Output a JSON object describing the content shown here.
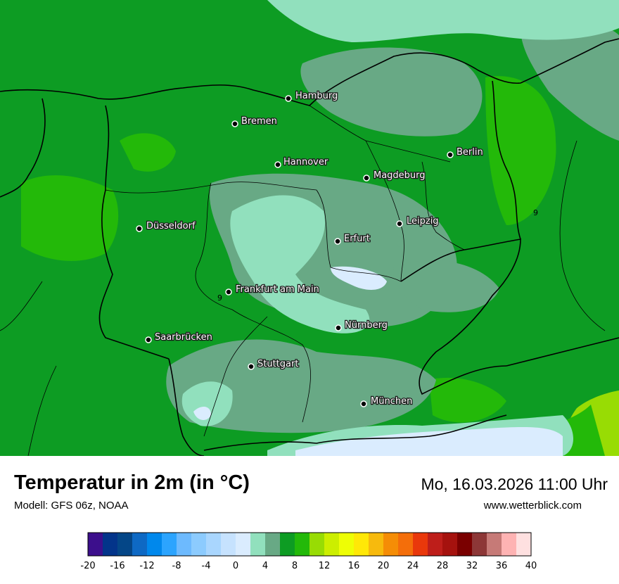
{
  "map": {
    "title": "Temperatur in 2m (in °C)",
    "model": "Modell: GFS 06z, NOAA",
    "datetime": "Mo, 16.03.2026 11:00 Uhr",
    "website": "www.wetterblick.com",
    "cities": [
      {
        "name": "Hamburg"
      },
      {
        "name": "Bremen"
      },
      {
        "name": "Berlin"
      },
      {
        "name": "Hannover"
      },
      {
        "name": "Magdeburg"
      },
      {
        "name": "Leipzig"
      },
      {
        "name": "Düsseldorf"
      },
      {
        "name": "Erfurt"
      },
      {
        "name": "Frankfurt am Main"
      },
      {
        "name": "Nürnberg"
      },
      {
        "name": "Saarbrücken"
      },
      {
        "name": "Stuttgart"
      },
      {
        "name": "München"
      }
    ],
    "contour_labels": [
      "9",
      "9"
    ]
  },
  "legend": {
    "colors": [
      "#3c0f8c",
      "#03348a",
      "#044687",
      "#0e69c4",
      "#0088ec",
      "#2ca4fe",
      "#6dbafe",
      "#8ccbfe",
      "#a9d6fe",
      "#c6e2fe",
      "#daecfe",
      "#91e0bd",
      "#68a985",
      "#0d9c23",
      "#23b909",
      "#98dc04",
      "#ccee00",
      "#eefe05",
      "#ffe807",
      "#f7ba0d",
      "#f58d06",
      "#f46e0a",
      "#e9380b",
      "#be1e1a",
      "#a5120e",
      "#7a0000",
      "#8d3737",
      "#c67a77",
      "#feb3b3",
      "#fee0e0"
    ],
    "ticks": [
      "-20",
      "-16",
      "-12",
      "-8",
      "-4",
      "0",
      "4",
      "8",
      "12",
      "16",
      "20",
      "24",
      "28",
      "32",
      "36",
      "40"
    ]
  }
}
